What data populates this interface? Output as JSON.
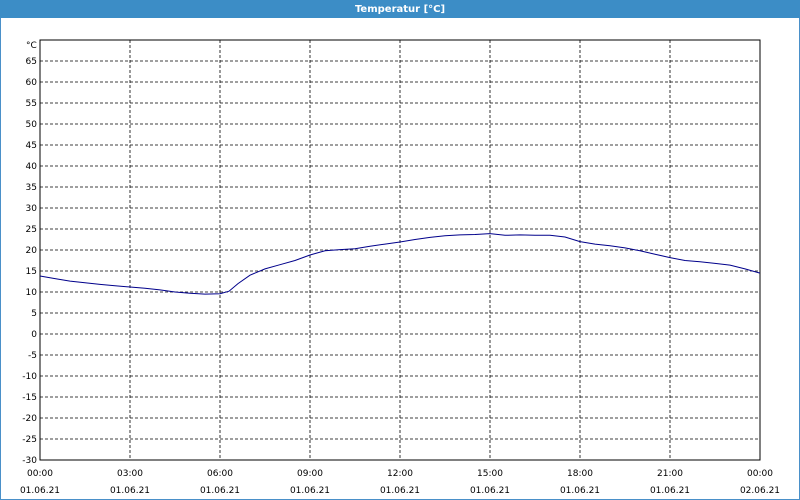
{
  "window": {
    "title": "Temperatur [°C]"
  },
  "chart_data": {
    "type": "line",
    "title": "Temperatur [°C]",
    "ylabel": "°C",
    "xlabel": "",
    "ylim": [
      -30,
      70
    ],
    "yticks": [
      65,
      60,
      55,
      50,
      45,
      40,
      35,
      30,
      25,
      20,
      15,
      10,
      5,
      0,
      -5,
      -10,
      -15,
      -20,
      -25,
      -30
    ],
    "xlim": [
      0,
      24
    ],
    "xticks": [
      {
        "time": "00:00",
        "date": "01.06.21"
      },
      {
        "time": "03:00",
        "date": "01.06.21"
      },
      {
        "time": "06:00",
        "date": "01.06.21"
      },
      {
        "time": "09:00",
        "date": "01.06.21"
      },
      {
        "time": "12:00",
        "date": "01.06.21"
      },
      {
        "time": "15:00",
        "date": "01.06.21"
      },
      {
        "time": "18:00",
        "date": "01.06.21"
      },
      {
        "time": "21:00",
        "date": "01.06.21"
      },
      {
        "time": "00:00",
        "date": "02.06.21"
      }
    ],
    "grid": true,
    "line_color": "#00008b",
    "series": [
      {
        "x": [
          0,
          0.5,
          1,
          1.5,
          2,
          2.5,
          3,
          3.5,
          4,
          4.5,
          5,
          5.5,
          6,
          6.3,
          6.6,
          7,
          7.5,
          8,
          8.5,
          9,
          9.5,
          10,
          10.5,
          11,
          11.5,
          12,
          12.5,
          13,
          13.5,
          14,
          14.5,
          15,
          15.5,
          16,
          16.5,
          17,
          17.5,
          18,
          18.5,
          19,
          19.5,
          20,
          20.5,
          21,
          21.5,
          22,
          22.5,
          23,
          23.5,
          24
        ],
        "y": [
          13.8,
          13.2,
          12.6,
          12.2,
          11.8,
          11.5,
          11.2,
          10.9,
          10.5,
          10.0,
          9.7,
          9.5,
          9.6,
          10.2,
          12.0,
          14.0,
          15.5,
          16.5,
          17.5,
          18.8,
          19.8,
          20.1,
          20.3,
          20.9,
          21.4,
          21.9,
          22.5,
          23.0,
          23.4,
          23.6,
          23.7,
          23.9,
          23.5,
          23.6,
          23.5,
          23.5,
          23.1,
          22.0,
          21.4,
          21.0,
          20.5,
          19.8,
          19.0,
          18.2,
          17.5,
          17.2,
          16.8,
          16.4,
          15.5,
          14.5
        ]
      }
    ]
  }
}
